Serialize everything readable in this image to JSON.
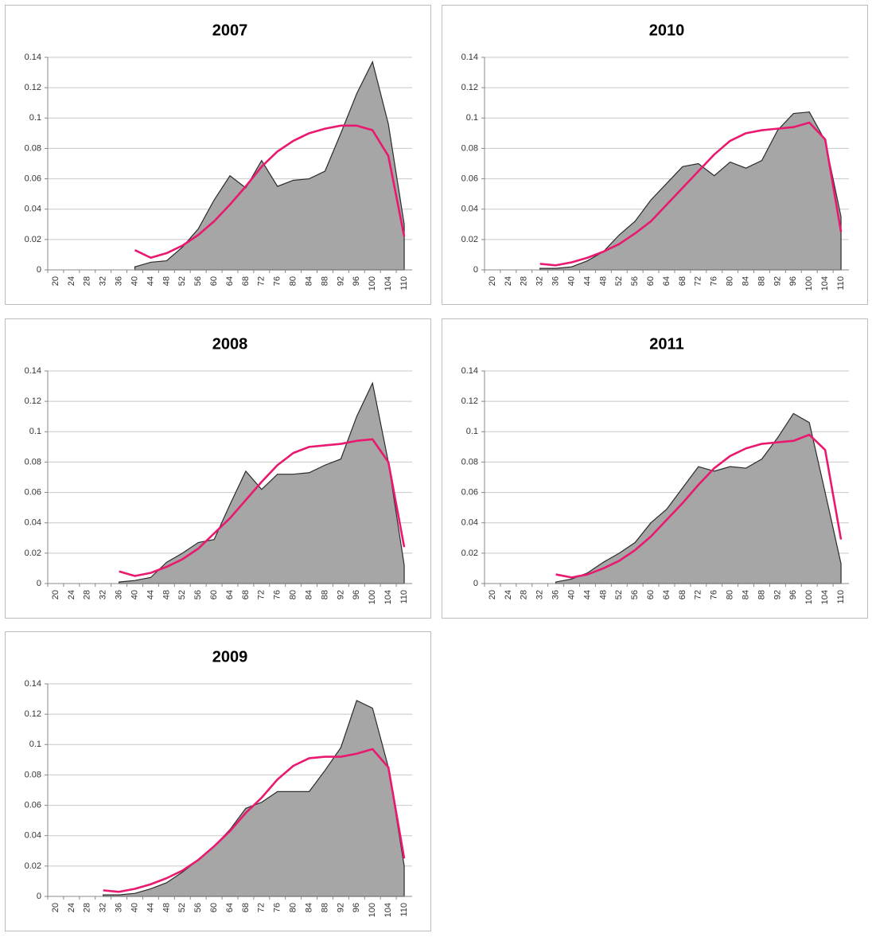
{
  "chart_data": [
    {
      "type": "area",
      "title": "2007",
      "categories": [
        "20",
        "24",
        "28",
        "32",
        "36",
        "40",
        "44",
        "48",
        "52",
        "56",
        "60",
        "64",
        "68",
        "72",
        "76",
        "80",
        "84",
        "88",
        "92",
        "96",
        "100",
        "104",
        "110"
      ],
      "ylim": [
        0,
        0.14
      ],
      "yticks": [
        0,
        0.02,
        0.04,
        0.06,
        0.08,
        0.1,
        0.12,
        0.14
      ],
      "grid": true,
      "series": [
        {
          "type": "area",
          "color": "#a6a6a6",
          "values": [
            null,
            null,
            null,
            null,
            null,
            0.002,
            0.005,
            0.006,
            0.015,
            0.027,
            0.046,
            0.062,
            0.054,
            0.072,
            0.055,
            0.059,
            0.06,
            0.065,
            0.09,
            0.116,
            0.137,
            0.096,
            0.03
          ]
        },
        {
          "type": "line",
          "color": "#e8196f",
          "values": [
            null,
            null,
            null,
            null,
            null,
            0.013,
            0.008,
            0.011,
            0.016,
            0.023,
            0.032,
            0.043,
            0.055,
            0.068,
            0.078,
            0.085,
            0.09,
            0.093,
            0.095,
            0.095,
            0.092,
            0.075,
            0.022
          ]
        }
      ]
    },
    {
      "type": "area",
      "title": "2010",
      "categories": [
        "20",
        "24",
        "28",
        "32",
        "36",
        "40",
        "44",
        "48",
        "52",
        "56",
        "60",
        "64",
        "68",
        "72",
        "76",
        "80",
        "84",
        "88",
        "92",
        "96",
        "100",
        "104",
        "110"
      ],
      "ylim": [
        0,
        0.14
      ],
      "yticks": [
        0,
        0.02,
        0.04,
        0.06,
        0.08,
        0.1,
        0.12,
        0.14
      ],
      "grid": true,
      "series": [
        {
          "type": "area",
          "color": "#a6a6a6",
          "values": [
            null,
            null,
            null,
            0.001,
            0.001,
            0.002,
            0.006,
            0.012,
            0.023,
            0.032,
            0.046,
            0.057,
            0.068,
            0.07,
            0.062,
            0.071,
            0.067,
            0.072,
            0.092,
            0.103,
            0.104,
            0.085,
            0.035
          ]
        },
        {
          "type": "line",
          "color": "#e8196f",
          "values": [
            null,
            null,
            null,
            0.004,
            0.003,
            0.005,
            0.008,
            0.012,
            0.017,
            0.024,
            0.032,
            0.043,
            0.054,
            0.065,
            0.076,
            0.085,
            0.09,
            0.092,
            0.093,
            0.094,
            0.097,
            0.086,
            0.025
          ]
        }
      ]
    },
    {
      "type": "area",
      "title": "2008",
      "categories": [
        "20",
        "24",
        "28",
        "32",
        "36",
        "40",
        "44",
        "48",
        "52",
        "56",
        "60",
        "64",
        "68",
        "72",
        "76",
        "80",
        "84",
        "88",
        "92",
        "96",
        "100",
        "104",
        "110"
      ],
      "ylim": [
        0,
        0.14
      ],
      "yticks": [
        0,
        0.02,
        0.04,
        0.06,
        0.08,
        0.1,
        0.12,
        0.14
      ],
      "grid": true,
      "series": [
        {
          "type": "area",
          "color": "#a6a6a6",
          "values": [
            null,
            null,
            null,
            null,
            0.001,
            0.002,
            0.004,
            0.014,
            0.02,
            0.027,
            0.029,
            0.052,
            0.074,
            0.062,
            0.072,
            0.072,
            0.073,
            0.078,
            0.082,
            0.11,
            0.132,
            0.08,
            0.012
          ]
        },
        {
          "type": "line",
          "color": "#e8196f",
          "values": [
            null,
            null,
            null,
            null,
            0.008,
            0.005,
            0.007,
            0.011,
            0.016,
            0.023,
            0.033,
            0.043,
            0.055,
            0.067,
            0.078,
            0.086,
            0.09,
            0.091,
            0.092,
            0.094,
            0.095,
            0.08,
            0.024
          ]
        }
      ]
    },
    {
      "type": "area",
      "title": "2011",
      "categories": [
        "20",
        "24",
        "28",
        "32",
        "36",
        "40",
        "44",
        "48",
        "52",
        "56",
        "60",
        "64",
        "68",
        "72",
        "76",
        "80",
        "84",
        "88",
        "92",
        "96",
        "100",
        "104",
        "110"
      ],
      "ylim": [
        0,
        0.14
      ],
      "yticks": [
        0,
        0.02,
        0.04,
        0.06,
        0.08,
        0.1,
        0.12,
        0.14
      ],
      "grid": true,
      "series": [
        {
          "type": "area",
          "color": "#a6a6a6",
          "values": [
            null,
            null,
            null,
            null,
            0.001,
            0.003,
            0.007,
            0.014,
            0.02,
            0.027,
            0.04,
            0.049,
            0.063,
            0.077,
            0.074,
            0.077,
            0.076,
            0.082,
            0.096,
            0.112,
            0.106,
            0.06,
            0.013
          ]
        },
        {
          "type": "line",
          "color": "#e8196f",
          "values": [
            null,
            null,
            null,
            null,
            0.006,
            0.004,
            0.006,
            0.01,
            0.015,
            0.022,
            0.031,
            0.042,
            0.053,
            0.065,
            0.076,
            0.084,
            0.089,
            0.092,
            0.093,
            0.094,
            0.098,
            0.088,
            0.029
          ]
        }
      ]
    },
    {
      "type": "area",
      "title": "2009",
      "categories": [
        "20",
        "24",
        "28",
        "32",
        "36",
        "40",
        "44",
        "48",
        "52",
        "56",
        "60",
        "64",
        "68",
        "72",
        "76",
        "80",
        "84",
        "88",
        "92",
        "96",
        "100",
        "104",
        "110"
      ],
      "ylim": [
        0,
        0.14
      ],
      "yticks": [
        0,
        0.02,
        0.04,
        0.06,
        0.08,
        0.1,
        0.12,
        0.14
      ],
      "grid": true,
      "series": [
        {
          "type": "area",
          "color": "#a6a6a6",
          "values": [
            null,
            null,
            null,
            0.001,
            0.001,
            0.002,
            0.005,
            0.009,
            0.016,
            0.024,
            0.033,
            0.044,
            0.058,
            0.062,
            0.069,
            0.069,
            0.069,
            0.083,
            0.098,
            0.129,
            0.124,
            0.085,
            0.02
          ]
        },
        {
          "type": "line",
          "color": "#e8196f",
          "values": [
            null,
            null,
            null,
            0.004,
            0.003,
            0.005,
            0.008,
            0.012,
            0.017,
            0.024,
            0.033,
            0.043,
            0.055,
            0.065,
            0.077,
            0.086,
            0.091,
            0.092,
            0.092,
            0.094,
            0.097,
            0.085,
            0.025
          ]
        }
      ]
    }
  ]
}
